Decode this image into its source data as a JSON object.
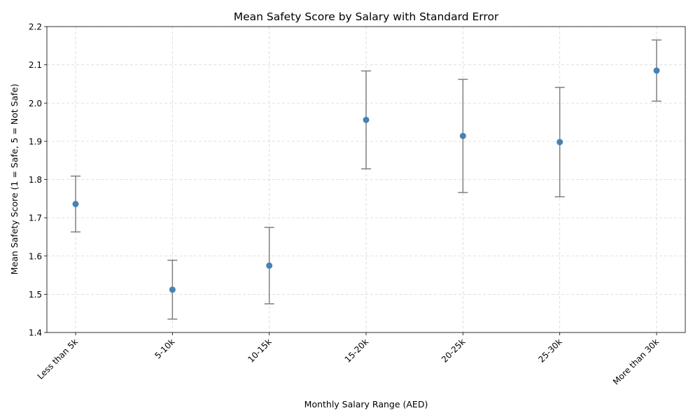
{
  "chart_data": {
    "type": "scatter",
    "title": "Mean Safety Score by Salary with Standard Error",
    "xlabel": "Monthly Salary Range (AED)",
    "ylabel": "Mean Safety Score (1 = Safe, 5 = Not Safe)",
    "categories": [
      "Less than 5k",
      "5-10k",
      "10-15k",
      "15-20k",
      "20-25k",
      "25-30k",
      "More than 30k"
    ],
    "values": [
      1.736,
      1.512,
      1.575,
      1.956,
      1.914,
      1.898,
      2.085
    ],
    "errors": [
      0.073,
      0.077,
      0.1,
      0.128,
      0.148,
      0.143,
      0.08
    ],
    "ylim": [
      1.4,
      2.2
    ],
    "yticks": [
      "1.4",
      "1.5",
      "1.6",
      "1.7",
      "1.8",
      "1.9",
      "2.0",
      "2.1",
      "2.2"
    ],
    "grid": true,
    "colors": {
      "marker": "#4682b4",
      "error_bar": "#808080",
      "grid": "#cccccc"
    }
  }
}
